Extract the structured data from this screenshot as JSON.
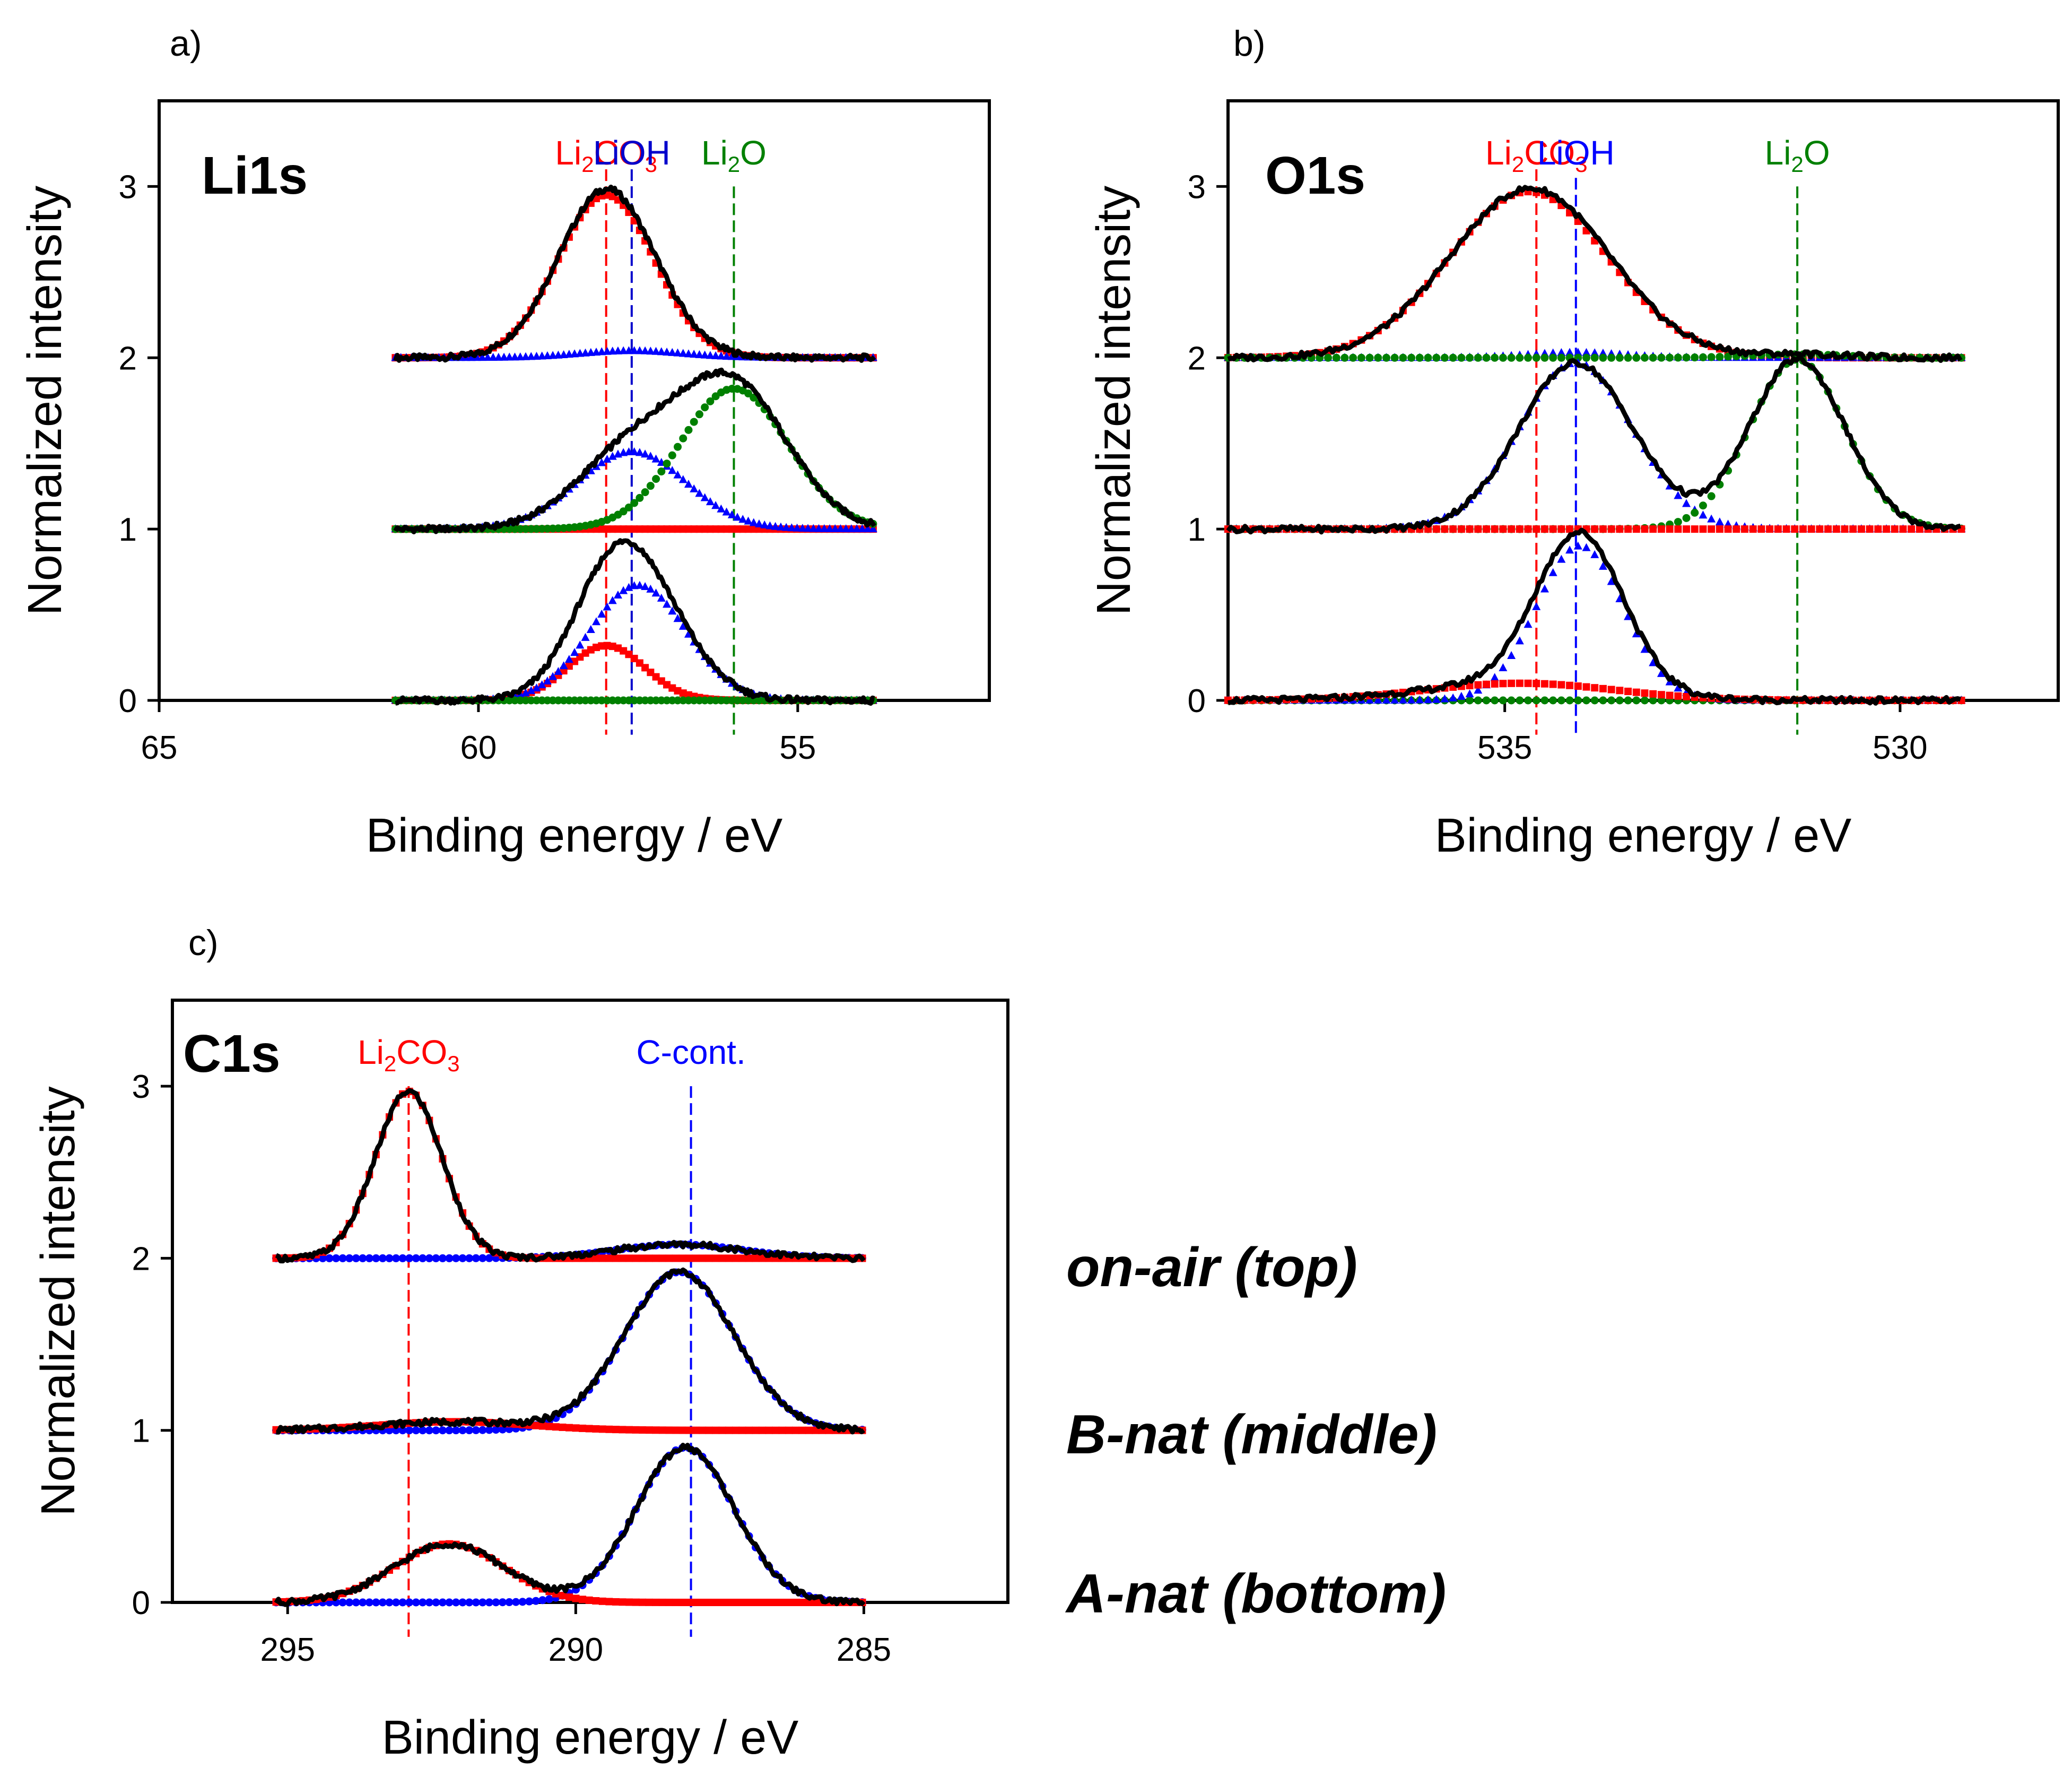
{
  "chart_data": [
    {
      "type": "line",
      "panel_label": "a)",
      "title": "Li1s",
      "xlabel": "Binding energy / eV",
      "ylabel": "Normalized intensity",
      "xlim": [
        65,
        52
      ],
      "ylim": [
        0,
        3.5
      ],
      "xticks": [
        65,
        60,
        55
      ],
      "xtick_labels": [
        "65",
        "60",
        "55"
      ],
      "yticks": [
        0,
        1,
        2,
        3
      ],
      "ytick_labels": [
        "0",
        "1",
        "2",
        "3"
      ],
      "x_range": [
        61.3,
        53.8
      ],
      "reference_lines": [
        {
          "label": "Li",
          "sub": "2",
          "label2": "CO",
          "sub2": "3",
          "x": 58.0,
          "color": "#ff0000",
          "y_top": 3.1
        },
        {
          "label": "LiOH",
          "sub": "",
          "label2": "",
          "sub2": "",
          "x": 57.6,
          "color": "#0000cc",
          "y_top": 3.1
        },
        {
          "label": "Li",
          "sub": "2",
          "label2": "O",
          "sub2": "",
          "x": 56.0,
          "color": "#008000",
          "y_top": 3.0
        }
      ],
      "spectra": [
        {
          "name": "on-air (top)",
          "offset": 2,
          "components": [
            {
              "name": "Li2CO3",
              "color": "#ff0000",
              "marker": "square",
              "peaks": [
                {
                  "center": 58.0,
                  "height": 0.95,
                  "sigma": 0.75
                }
              ]
            },
            {
              "name": "LiOH",
              "color": "#0000ff",
              "marker": "triangle",
              "peaks": [
                {
                  "center": 57.6,
                  "height": 0.04,
                  "sigma": 0.8
                }
              ]
            }
          ]
        },
        {
          "name": "B-nat (middle)",
          "offset": 1,
          "components": [
            {
              "name": "Li2CO3",
              "color": "#ff0000",
              "marker": "square",
              "peaks": []
            },
            {
              "name": "LiOH",
              "color": "#0000ff",
              "marker": "triangle",
              "peaks": [
                {
                  "center": 57.6,
                  "height": 0.45,
                  "sigma": 0.85
                }
              ]
            },
            {
              "name": "Li2O",
              "color": "#008000",
              "marker": "circle",
              "peaks": [
                {
                  "center": 56.0,
                  "height": 0.82,
                  "sigma": 0.85
                }
              ]
            }
          ]
        },
        {
          "name": "A-nat (bottom)",
          "offset": 0,
          "components": [
            {
              "name": "Li2CO3",
              "color": "#ff0000",
              "marker": "square",
              "peaks": [
                {
                  "center": 58.0,
                  "height": 0.32,
                  "sigma": 0.6
                }
              ]
            },
            {
              "name": "LiOH",
              "color": "#0000ff",
              "marker": "triangle",
              "peaks": [
                {
                  "center": 57.5,
                  "height": 0.67,
                  "sigma": 0.75
                }
              ]
            },
            {
              "name": "Li2O",
              "color": "#008000",
              "marker": "circle",
              "peaks": []
            }
          ]
        }
      ]
    },
    {
      "type": "line",
      "panel_label": "b)",
      "title": "O1s",
      "xlabel": "Binding energy / eV",
      "ylabel": "Normalized intensity",
      "xlim": [
        538.5,
        528.0
      ],
      "ylim": [
        0,
        3.5
      ],
      "xticks": [
        535,
        530
      ],
      "xtick_labels": [
        "535",
        "530"
      ],
      "yticks": [
        0,
        1,
        2,
        3
      ],
      "ytick_labels": [
        "0",
        "1",
        "2",
        "3"
      ],
      "x_range": [
        538.5,
        529.2
      ],
      "reference_lines": [
        {
          "label": "Li",
          "sub": "2",
          "label2": "CO",
          "sub2": "3",
          "x": 534.6,
          "color": "#ff0000",
          "y_top": 3.1
        },
        {
          "label": "LiOH",
          "sub": "",
          "label2": "",
          "sub2": "",
          "x": 534.1,
          "color": "#0000ff",
          "y_top": 3.05
        },
        {
          "label": "Li",
          "sub": "2",
          "label2": "O",
          "sub2": "",
          "x": 531.3,
          "color": "#008000",
          "y_top": 3.0
        }
      ],
      "spectra": [
        {
          "name": "on-air (top)",
          "offset": 2,
          "components": [
            {
              "name": "Li2CO3",
              "color": "#ff0000",
              "marker": "square",
              "peaks": [
                {
                  "center": 534.7,
                  "height": 0.97,
                  "sigma": 1.0
                }
              ]
            },
            {
              "name": "LiOH",
              "color": "#0000ff",
              "marker": "triangle",
              "peaks": [
                {
                  "center": 534.1,
                  "height": 0.03,
                  "sigma": 0.6
                }
              ]
            },
            {
              "name": "Li2O",
              "color": "#008000",
              "marker": "circle",
              "peaks": [
                {
                  "center": 531.3,
                  "height": 0.02,
                  "sigma": 0.6
                }
              ]
            }
          ]
        },
        {
          "name": "B-nat (middle)",
          "offset": 1,
          "components": [
            {
              "name": "LiOH",
              "color": "#0000ff",
              "marker": "triangle",
              "peaks": [
                {
                  "center": 534.1,
                  "height": 0.97,
                  "sigma": 0.72
                }
              ]
            },
            {
              "name": "Li2O",
              "color": "#008000",
              "marker": "circle",
              "peaks": [
                {
                  "center": 531.3,
                  "height": 0.99,
                  "sigma": 0.6
                }
              ]
            },
            {
              "name": "Li2CO3",
              "color": "#ff0000",
              "marker": "square",
              "peaks": []
            }
          ]
        },
        {
          "name": "A-nat (bottom)",
          "offset": 0,
          "components": [
            {
              "name": "Li2O",
              "color": "#008000",
              "marker": "circle",
              "peaks": []
            },
            {
              "name": "LiOH",
              "color": "#0000ff",
              "marker": "triangle",
              "peaks": [
                {
                  "center": 534.05,
                  "height": 0.9,
                  "sigma": 0.55
                }
              ]
            },
            {
              "name": "Li2CO3",
              "color": "#ff0000",
              "marker": "square",
              "peaks": [
                {
                  "center": 534.8,
                  "height": 0.1,
                  "sigma": 1.2
                }
              ]
            }
          ]
        }
      ]
    },
    {
      "type": "line",
      "panel_label": "c)",
      "title": "C1s",
      "xlabel": "Binding energy / eV",
      "ylabel": "Normalized intensity",
      "xlim": [
        297.0,
        282.5
      ],
      "ylim": [
        0,
        3.5
      ],
      "xticks": [
        295,
        290,
        285
      ],
      "xtick_labels": [
        "295",
        "290",
        "285"
      ],
      "yticks": [
        0,
        1,
        2,
        3
      ],
      "ytick_labels": [
        "0",
        "1",
        "2",
        "3"
      ],
      "x_range": [
        295.2,
        285.0
      ],
      "reference_lines": [
        {
          "label": "Li",
          "sub": "2",
          "label2": "CO",
          "sub2": "3",
          "x": 292.9,
          "color": "#ff0000",
          "y_top": 3.0
        },
        {
          "label": "C-cont.",
          "sub": "",
          "label2": "",
          "sub2": "",
          "x": 288.0,
          "color": "#0000ff",
          "y_top": 3.0
        }
      ],
      "spectra": [
        {
          "name": "on-air (top)",
          "offset": 2,
          "components": [
            {
              "name": "C-cont.",
              "color": "#0000ff",
              "marker": "circle",
              "peaks": [
                {
                  "center": 288.2,
                  "height": 0.08,
                  "sigma": 1.1
                }
              ]
            },
            {
              "name": "Li2CO3",
              "color": "#ff0000",
              "marker": "square",
              "peaks": [
                {
                  "center": 292.9,
                  "height": 0.97,
                  "sigma": 0.58
                }
              ]
            }
          ]
        },
        {
          "name": "B-nat (middle)",
          "offset": 1,
          "components": [
            {
              "name": "C-cont.",
              "color": "#0000ff",
              "marker": "circle",
              "peaks": [
                {
                  "center": 288.2,
                  "height": 0.92,
                  "sigma": 0.95
                }
              ]
            },
            {
              "name": "Li2CO3",
              "color": "#ff0000",
              "marker": "square",
              "peaks": [
                {
                  "center": 292.1,
                  "height": 0.05,
                  "sigma": 1.3
                }
              ]
            }
          ]
        },
        {
          "name": "A-nat (bottom)",
          "offset": 0,
          "components": [
            {
              "name": "C-cont.",
              "color": "#0000ff",
              "marker": "circle",
              "peaks": [
                {
                  "center": 288.1,
                  "height": 0.9,
                  "sigma": 0.85
                }
              ]
            },
            {
              "name": "Li2CO3",
              "color": "#ff0000",
              "marker": "square",
              "peaks": [
                {
                  "center": 292.2,
                  "height": 0.34,
                  "sigma": 0.95
                }
              ]
            }
          ]
        }
      ]
    }
  ],
  "legend": {
    "top": "on-air (top)",
    "middle": "B-nat (middle)",
    "bottom": "A-nat (bottom)"
  },
  "colors": {
    "axis": "#000000",
    "measured": "#000000"
  }
}
